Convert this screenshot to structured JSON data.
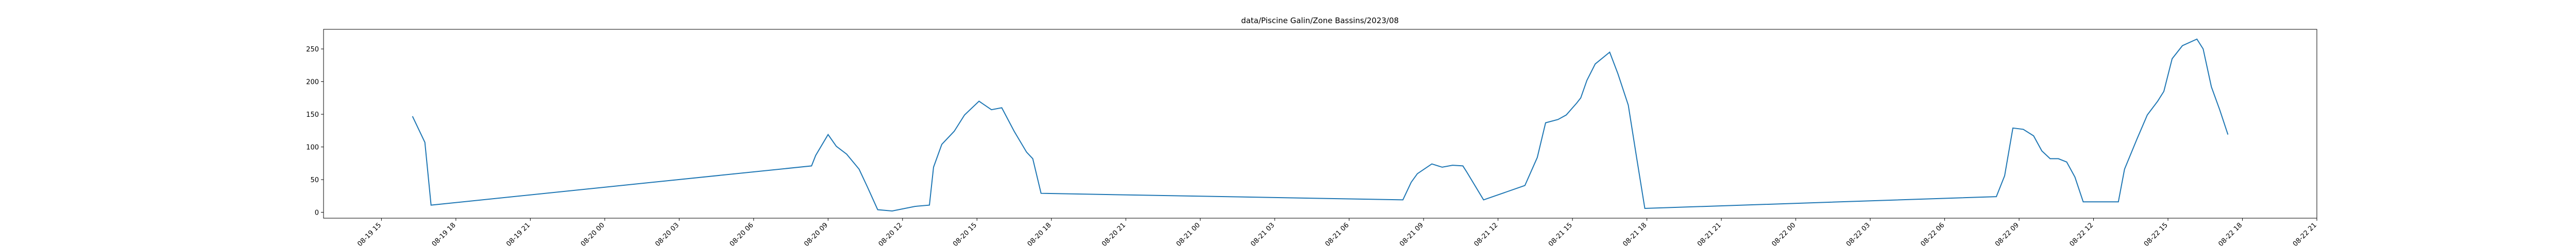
{
  "chart_data": {
    "type": "line",
    "title": "data/Piscine Galin/Zone Bassins/2023/08",
    "x": [
      "08-19 16:15",
      "08-19 16:45",
      "08-19 17:00",
      "08-20 08:20",
      "08-20 08:30",
      "08-20 09:00",
      "08-20 09:20",
      "08-20 09:45",
      "08-20 10:15",
      "08-20 10:35",
      "08-20 11:00",
      "08-20 11:35",
      "08-20 12:30",
      "08-20 13:05",
      "08-20 13:15",
      "08-20 13:35",
      "08-20 14:05",
      "08-20 14:30",
      "08-20 15:05",
      "08-20 15:35",
      "08-20 16:00",
      "08-20 16:30",
      "08-20 17:00",
      "08-20 17:15",
      "08-20 17:35",
      "08-21 08:10",
      "08-21 08:30",
      "08-21 08:45",
      "08-21 09:20",
      "08-21 09:45",
      "08-21 10:10",
      "08-21 10:35",
      "08-21 10:45",
      "08-21 11:25",
      "08-21 13:05",
      "08-21 13:35",
      "08-21 13:55",
      "08-21 14:25",
      "08-21 14:45",
      "08-21 15:10",
      "08-21 15:20",
      "08-21 15:35",
      "08-21 15:55",
      "08-21 16:30",
      "08-21 16:50",
      "08-21 17:15",
      "08-21 17:35",
      "08-21 17:55",
      "08-22 08:05",
      "08-22 08:25",
      "08-22 08:45",
      "08-22 09:10",
      "08-22 09:35",
      "08-22 09:55",
      "08-22 10:15",
      "08-22 10:35",
      "08-22 10:55",
      "08-22 11:15",
      "08-22 11:35",
      "08-22 13:00",
      "08-22 13:15",
      "08-22 13:45",
      "08-22 14:10",
      "08-22 14:35",
      "08-22 14:50",
      "08-22 15:10",
      "08-22 15:35",
      "08-22 16:10",
      "08-22 16:25",
      "08-22 16:45",
      "08-22 17:05",
      "08-22 17:25"
    ],
    "series": [
      {
        "color": "#1f77b4",
        "values": [
          147,
          107,
          11,
          71,
          87,
          119,
          101,
          89,
          66,
          39,
          4,
          2,
          9,
          11,
          69,
          104,
          124,
          149,
          170,
          157,
          160,
          124,
          92,
          82,
          29,
          19,
          46,
          59,
          74,
          69,
          72,
          71,
          61,
          19,
          41,
          84,
          137,
          142,
          149,
          167,
          175,
          202,
          227,
          245,
          212,
          164,
          84,
          6,
          24,
          56,
          129,
          127,
          117,
          94,
          82,
          82,
          77,
          54,
          16,
          16,
          66,
          112,
          149,
          170,
          185,
          235,
          255,
          265,
          250,
          192,
          157,
          119
        ]
      }
    ],
    "xlim": [
      "08-19 12:40",
      "08-22 21"
    ],
    "xticks": [
      "08-19 15",
      "08-19 18",
      "08-19 21",
      "08-20 00",
      "08-20 03",
      "08-20 06",
      "08-20 09",
      "08-20 12",
      "08-20 15",
      "08-20 18",
      "08-20 21",
      "08-21 00",
      "08-21 03",
      "08-21 06",
      "08-21 09",
      "08-21 12",
      "08-21 15",
      "08-21 18",
      "08-21 21",
      "08-22 00",
      "08-22 03",
      "08-22 06",
      "08-22 09",
      "08-22 12",
      "08-22 15",
      "08-22 18",
      "08-22 21"
    ],
    "ylim": [
      -9,
      280
    ],
    "yticks": [
      0,
      50,
      100,
      150,
      200,
      250
    ]
  }
}
